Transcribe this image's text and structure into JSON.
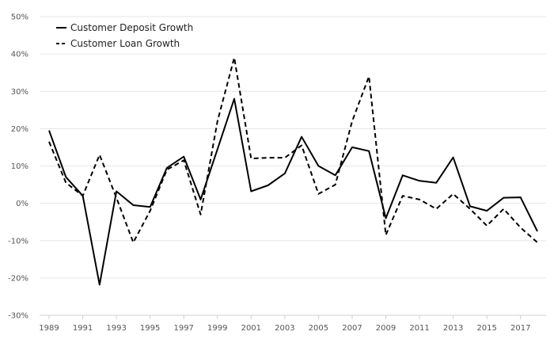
{
  "chart_data": {
    "type": "line",
    "x": [
      1989,
      1990,
      1991,
      1992,
      1993,
      1994,
      1995,
      1996,
      1997,
      1998,
      1999,
      2000,
      2001,
      2002,
      2003,
      2004,
      2005,
      2006,
      2007,
      2008,
      2009,
      2010,
      2011,
      2012,
      2013,
      2014,
      2015,
      2016,
      2017,
      2018
    ],
    "x_tick_labels": [
      "1989",
      "1991",
      "1993",
      "1995",
      "1997",
      "1999",
      "2001",
      "2003",
      "2005",
      "2007",
      "2009",
      "2011",
      "2013",
      "2015",
      "2017"
    ],
    "y_tick_labels": [
      "50%",
      "40%",
      "30%",
      "20%",
      "10%",
      "0%",
      "-10%",
      "-20%",
      "-30%"
    ],
    "ylim": [
      -30,
      50
    ],
    "y_unit": "%",
    "grid": true,
    "legend_position": "top-left",
    "series": [
      {
        "name": "Customer Deposit Growth",
        "style": "solid",
        "color": "#000000",
        "values": [
          19.5,
          7.0,
          2.0,
          -21.8,
          3.2,
          -0.5,
          -1.0,
          9.5,
          12.5,
          1.0,
          14.5,
          28.0,
          3.2,
          4.8,
          8.0,
          17.8,
          10.0,
          7.5,
          15.0,
          14.0,
          -4.0,
          7.5,
          6.0,
          5.5,
          12.3,
          -0.8,
          -2.0,
          1.5,
          1.6,
          -7.5
        ]
      },
      {
        "name": "Customer Loan Growth",
        "style": "dashed",
        "color": "#000000",
        "values": [
          16.5,
          5.5,
          2.0,
          13.0,
          1.5,
          -10.5,
          -2.0,
          9.0,
          11.5,
          -3.0,
          22.0,
          39.0,
          12.0,
          12.2,
          12.2,
          15.5,
          2.5,
          5.0,
          22.0,
          34.0,
          -8.5,
          2.0,
          1.0,
          -1.5,
          2.5,
          -1.5,
          -6.0,
          -1.5,
          -6.5,
          -10.5
        ]
      }
    ]
  }
}
